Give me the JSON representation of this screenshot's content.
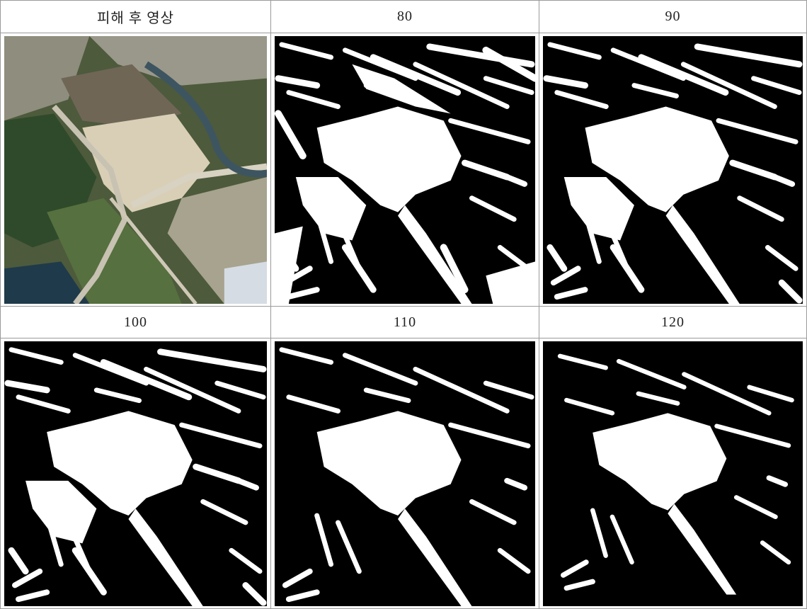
{
  "table": {
    "rows": [
      [
        "피해 후 영상",
        80,
        90
      ],
      [
        100,
        110,
        120
      ]
    ]
  }
}
